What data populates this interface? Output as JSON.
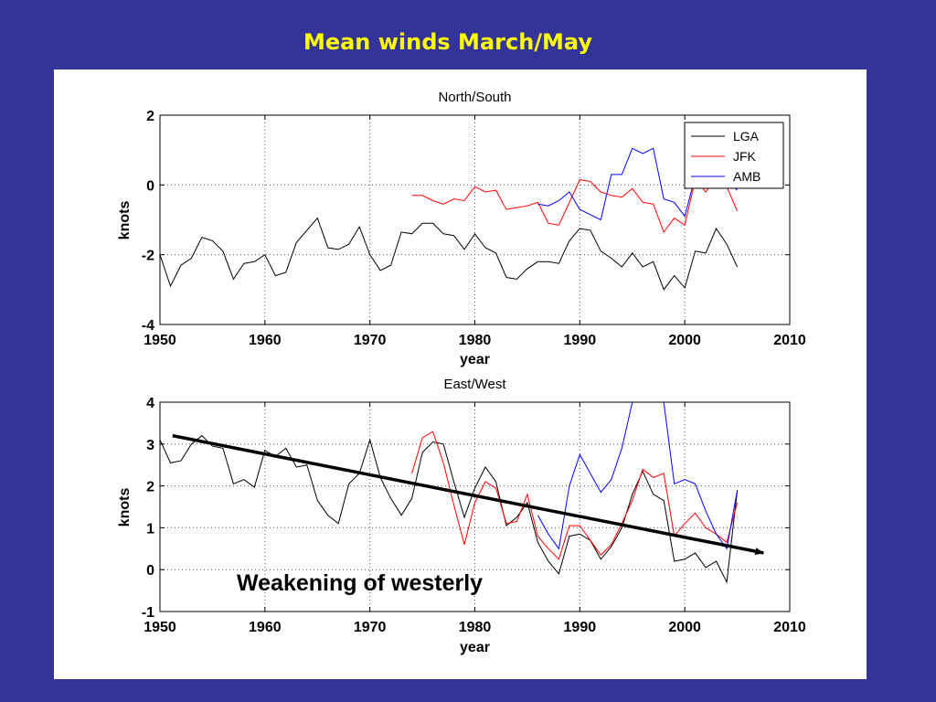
{
  "slide": {
    "title": "Mean winds March/May"
  },
  "annotation": {
    "text": "Weakening of westerly"
  },
  "chart_data": [
    {
      "type": "line",
      "title": "North/South",
      "xlabel": "year",
      "ylabel": "knots",
      "xlim": [
        1950,
        2010
      ],
      "ylim": [
        -4,
        2
      ],
      "xticks": [
        "1950",
        "1960",
        "1970",
        "1980",
        "1990",
        "2000",
        "2010"
      ],
      "yticks": [
        "-4",
        "-2",
        "0",
        "2"
      ],
      "grid": true,
      "legend": "top-right",
      "series": [
        {
          "name": "LGA",
          "color": "#000000",
          "x": [
            1950,
            1951,
            1952,
            1953,
            1954,
            1955,
            1956,
            1957,
            1958,
            1959,
            1960,
            1961,
            1962,
            1963,
            1964,
            1965,
            1966,
            1967,
            1968,
            1969,
            1970,
            1971,
            1972,
            1973,
            1974,
            1975,
            1976,
            1977,
            1978,
            1979,
            1980,
            1981,
            1982,
            1983,
            1984,
            1985,
            1986,
            1987,
            1988,
            1989,
            1990,
            1991,
            1992,
            1993,
            1994,
            1995,
            1996,
            1997,
            1998,
            1999,
            2000,
            2001,
            2002,
            2003,
            2004,
            2005
          ],
          "y": [
            -2.0,
            -2.9,
            -2.3,
            -2.1,
            -1.5,
            -1.6,
            -1.9,
            -2.7,
            -2.25,
            -2.2,
            -2.0,
            -2.6,
            -2.5,
            -1.65,
            -1.3,
            -0.95,
            -1.8,
            -1.85,
            -1.7,
            -1.2,
            -2.0,
            -2.45,
            -2.3,
            -1.35,
            -1.4,
            -1.1,
            -1.1,
            -1.4,
            -1.45,
            -1.85,
            -1.4,
            -1.8,
            -1.95,
            -2.65,
            -2.7,
            -2.4,
            -2.2,
            -2.2,
            -2.25,
            -1.6,
            -1.25,
            -1.3,
            -1.9,
            -2.1,
            -2.35,
            -1.95,
            -2.35,
            -2.2,
            -3.0,
            -2.6,
            -2.95,
            -1.9,
            -1.95,
            -1.25,
            -1.7,
            -2.35
          ]
        },
        {
          "name": "JFK",
          "color": "#ff0000",
          "x": [
            1974,
            1975,
            1976,
            1977,
            1978,
            1979,
            1980,
            1981,
            1982,
            1983,
            1984,
            1985,
            1986,
            1987,
            1988,
            1989,
            1990,
            1991,
            1992,
            1993,
            1994,
            1995,
            1996,
            1997,
            1998,
            1999,
            2000,
            2001,
            2002,
            2003,
            2004,
            2005
          ],
          "y": [
            -0.3,
            -0.3,
            -0.45,
            -0.55,
            -0.4,
            -0.45,
            -0.05,
            -0.2,
            -0.15,
            -0.7,
            -0.65,
            -0.6,
            -0.5,
            -1.1,
            -1.15,
            -0.5,
            0.15,
            0.1,
            -0.2,
            -0.3,
            -0.35,
            -0.1,
            -0.5,
            -0.55,
            -1.35,
            -0.95,
            -1.15,
            0.15,
            -0.2,
            0.2,
            -0.05,
            -0.75
          ]
        },
        {
          "name": "AMB",
          "color": "#0000ff",
          "x": [
            1986,
            1987,
            1988,
            1989,
            1990,
            1991,
            1992,
            1993,
            1994,
            1995,
            1996,
            1997,
            1998,
            1999,
            2000,
            2001,
            2002,
            2003,
            2004,
            2005
          ],
          "y": [
            -0.55,
            -0.6,
            -0.45,
            -0.2,
            -0.7,
            -0.85,
            -1.0,
            0.3,
            0.3,
            1.05,
            0.9,
            1.05,
            -0.4,
            -0.5,
            -0.9,
            0.25,
            0.25,
            0.5,
            0.1,
            -0.15
          ]
        }
      ]
    },
    {
      "type": "line",
      "title": "East/West",
      "xlabel": "year",
      "ylabel": "knots",
      "xlim": [
        1950,
        2010
      ],
      "ylim": [
        -1,
        4
      ],
      "xticks": [
        "1950",
        "1960",
        "1970",
        "1980",
        "1990",
        "2000",
        "2010"
      ],
      "yticks": [
        "-1",
        "0",
        "1",
        "2",
        "3",
        "4"
      ],
      "grid": true,
      "trend_arrow": {
        "x": [
          1951.2,
          2007.5
        ],
        "y": [
          3.2,
          0.4
        ]
      },
      "series": [
        {
          "name": "LGA",
          "color": "#000000",
          "x": [
            1950,
            1951,
            1952,
            1953,
            1954,
            1955,
            1956,
            1957,
            1958,
            1959,
            1960,
            1961,
            1962,
            1963,
            1964,
            1965,
            1966,
            1967,
            1968,
            1969,
            1970,
            1971,
            1972,
            1973,
            1974,
            1975,
            1976,
            1977,
            1978,
            1979,
            1980,
            1981,
            1982,
            1983,
            1984,
            1985,
            1986,
            1987,
            1988,
            1989,
            1990,
            1991,
            1992,
            1993,
            1994,
            1995,
            1996,
            1997,
            1998,
            1999,
            2000,
            2001,
            2002,
            2003,
            2004,
            2005
          ],
          "y": [
            3.1,
            2.55,
            2.6,
            3.0,
            3.2,
            2.95,
            2.9,
            2.05,
            2.15,
            1.97,
            2.85,
            2.7,
            2.9,
            2.45,
            2.5,
            1.65,
            1.3,
            1.1,
            2.05,
            2.3,
            3.1,
            2.2,
            1.7,
            1.3,
            1.7,
            2.8,
            3.05,
            3.0,
            2.1,
            1.25,
            1.95,
            2.45,
            2.1,
            1.05,
            1.25,
            1.6,
            0.65,
            0.2,
            -0.1,
            0.8,
            0.85,
            0.7,
            0.25,
            0.55,
            1.0,
            1.8,
            2.35,
            1.8,
            1.65,
            0.2,
            0.25,
            0.4,
            0.05,
            0.2,
            -0.3,
            1.9
          ]
        },
        {
          "name": "JFK",
          "color": "#ff0000",
          "x": [
            1974,
            1975,
            1976,
            1977,
            1978,
            1979,
            1980,
            1981,
            1982,
            1983,
            1984,
            1985,
            1986,
            1987,
            1988,
            1989,
            1990,
            1991,
            1992,
            1993,
            1994,
            1995,
            1996,
            1997,
            1998,
            1999,
            2000,
            2001,
            2002,
            2003,
            2004,
            2005
          ],
          "y": [
            2.3,
            3.15,
            3.3,
            2.55,
            1.55,
            0.6,
            1.6,
            2.1,
            1.95,
            1.1,
            1.15,
            1.8,
            0.8,
            0.5,
            0.25,
            1.05,
            1.05,
            0.7,
            0.35,
            0.6,
            1.1,
            1.65,
            2.4,
            2.2,
            2.3,
            0.8,
            1.1,
            1.35,
            1.0,
            0.85,
            0.65,
            1.6
          ]
        },
        {
          "name": "AMB",
          "color": "#0000ff",
          "x": [
            1986,
            1987,
            1988,
            1989,
            1990,
            1991,
            1992,
            1993,
            1994,
            1995,
            1996,
            1997,
            1998,
            1999,
            2000,
            2001,
            2002,
            2003,
            2004,
            2005
          ],
          "y": [
            1.3,
            0.85,
            0.5,
            2.0,
            2.75,
            2.3,
            1.85,
            2.15,
            2.9,
            4.0,
            4.6,
            4.6,
            4.0,
            2.05,
            2.15,
            2.05,
            1.4,
            0.85,
            0.5,
            1.9
          ]
        }
      ]
    }
  ]
}
